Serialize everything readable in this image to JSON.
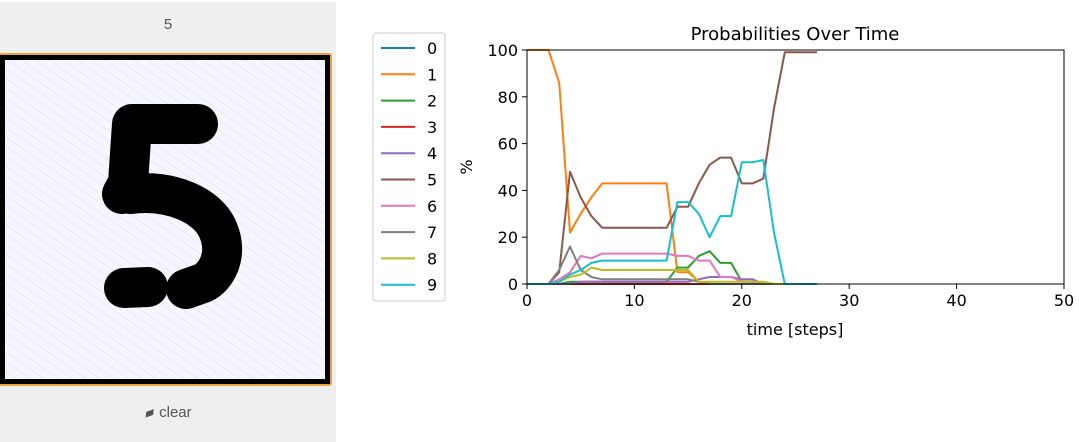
{
  "drawing_panel": {
    "predicted_digit": "5",
    "clear_label": "clear",
    "eraser_icon": "eraser-icon",
    "frame_color": "#e8a33b",
    "stroke_color": "#000000"
  },
  "chart_data": {
    "type": "line",
    "title": "Probabilities Over Time",
    "xlabel": "time [steps]",
    "ylabel": "%",
    "xlim": [
      0,
      50
    ],
    "ylim": [
      0,
      100
    ],
    "xticks": [
      0,
      10,
      20,
      30,
      40,
      50
    ],
    "yticks": [
      0,
      20,
      40,
      60,
      80,
      100
    ],
    "legend_position": "left",
    "x": [
      0,
      1,
      2,
      3,
      4,
      5,
      6,
      7,
      8,
      9,
      10,
      11,
      12,
      13,
      14,
      15,
      16,
      17,
      18,
      19,
      20,
      21,
      22,
      23,
      24,
      25,
      26,
      27
    ],
    "series": [
      {
        "name": "0",
        "color": "#1f77b4",
        "values": [
          0,
          0,
          0,
          0,
          0,
          0,
          0,
          0,
          0,
          0,
          0,
          0,
          0,
          0,
          0,
          0,
          0,
          0,
          0,
          0,
          0,
          0,
          0,
          0,
          0,
          0,
          0,
          0
        ]
      },
      {
        "name": "1",
        "color": "#ff7f0e",
        "values": [
          100,
          100,
          100,
          86,
          22,
          30,
          37,
          43,
          43,
          43,
          43,
          43,
          43,
          43,
          5,
          5,
          1,
          0,
          0,
          0,
          0,
          0,
          0,
          0,
          0,
          0,
          0,
          0
        ]
      },
      {
        "name": "2",
        "color": "#2ca02c",
        "values": [
          0,
          0,
          0,
          0,
          1,
          1,
          1,
          1,
          1,
          1,
          1,
          1,
          1,
          1,
          7,
          7,
          12,
          14,
          9,
          9,
          1,
          1,
          0,
          0,
          0,
          0,
          0,
          0
        ]
      },
      {
        "name": "3",
        "color": "#d62728",
        "values": [
          0,
          0,
          0,
          0,
          0,
          0,
          0,
          0,
          0,
          0,
          0,
          0,
          0,
          0,
          0,
          0,
          0,
          0,
          0,
          0,
          0,
          0,
          0,
          0,
          0,
          0,
          0,
          0
        ]
      },
      {
        "name": "4",
        "color": "#9467bd",
        "values": [
          0,
          0,
          0,
          0,
          0,
          1,
          1,
          1,
          1,
          1,
          1,
          1,
          1,
          1,
          1,
          1,
          2,
          3,
          3,
          3,
          2,
          2,
          0,
          0,
          0,
          0,
          0,
          0
        ]
      },
      {
        "name": "5",
        "color": "#8c564b",
        "values": [
          0,
          0,
          0,
          5,
          48,
          37,
          29,
          24,
          24,
          24,
          24,
          24,
          24,
          24,
          33,
          33,
          43,
          51,
          54,
          54,
          43,
          43,
          45,
          75,
          99,
          99,
          99,
          99
        ]
      },
      {
        "name": "6",
        "color": "#e377c2",
        "values": [
          0,
          0,
          0,
          2,
          5,
          12,
          11,
          13,
          13,
          13,
          13,
          13,
          13,
          13,
          12,
          12,
          10,
          10,
          3,
          3,
          1,
          1,
          0,
          0,
          0,
          0,
          0,
          0
        ]
      },
      {
        "name": "7",
        "color": "#7f7f7f",
        "values": [
          0,
          0,
          0,
          6,
          16,
          6,
          3,
          2,
          2,
          2,
          2,
          2,
          2,
          2,
          2,
          2,
          1,
          0,
          0,
          0,
          0,
          0,
          0,
          0,
          0,
          0,
          0,
          0
        ]
      },
      {
        "name": "8",
        "color": "#bcbd22",
        "values": [
          0,
          0,
          0,
          1,
          3,
          4,
          7,
          6,
          6,
          6,
          6,
          6,
          6,
          6,
          6,
          6,
          1,
          1,
          1,
          1,
          1,
          1,
          1,
          0,
          0,
          0,
          0,
          0
        ]
      },
      {
        "name": "9",
        "color": "#17becf",
        "values": [
          0,
          0,
          0,
          1,
          4,
          6,
          9,
          10,
          10,
          10,
          10,
          10,
          10,
          10,
          35,
          35,
          30,
          20,
          29,
          29,
          52,
          52,
          53,
          22,
          0,
          0,
          0,
          0
        ]
      }
    ]
  }
}
